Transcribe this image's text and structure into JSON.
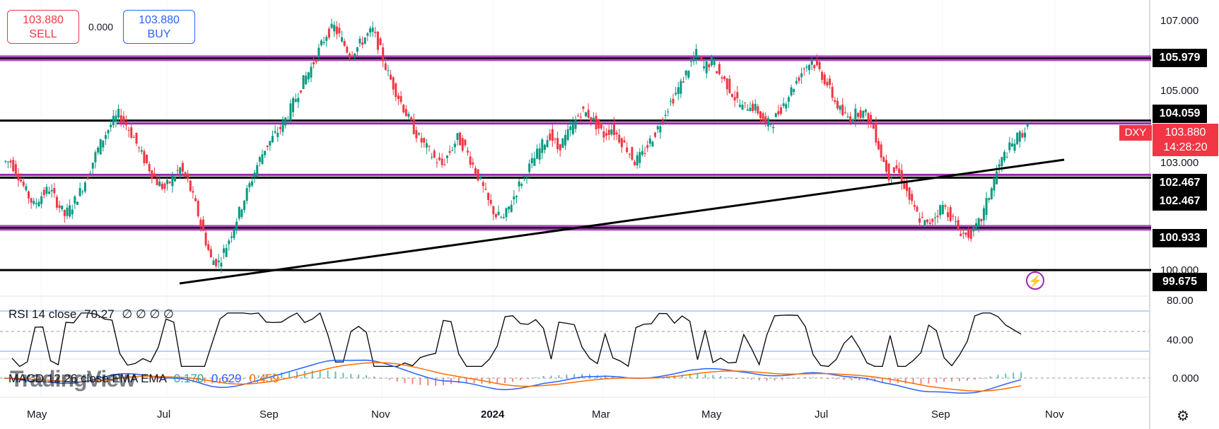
{
  "trade": {
    "sell_price": "103.880",
    "sell_label": "SELL",
    "buy_price": "103.880",
    "buy_label": "BUY",
    "spread": "0.000"
  },
  "price_axis": {
    "ticks": [
      "107.000",
      "105.000",
      "103.000",
      "100.000"
    ],
    "level_labels": [
      "105.979",
      "104.059",
      "102.467",
      "102.467",
      "100.933",
      "99.675"
    ]
  },
  "symbol": {
    "name": "DXY",
    "price": "103.880",
    "countdown": "14:28:20"
  },
  "rsi": {
    "label": "RSI 14 close",
    "value": "70.27",
    "extra": "∅ ∅ ∅ ∅",
    "ticks": [
      "80.00",
      "40.00"
    ]
  },
  "macd": {
    "label": "MACD 12 26 close EMA EMA",
    "hist": "0.170",
    "macd": "0.629",
    "signal": "0.459",
    "tick": "0.000"
  },
  "time_axis": [
    "May",
    "Jul",
    "Sep",
    "Nov",
    "2024",
    "Mar",
    "May",
    "Jul",
    "Sep",
    "Nov"
  ],
  "watermark": "TradingView",
  "colors": {
    "up": "#089981",
    "down": "#f23645",
    "purple": "#9c27b0",
    "line": "#000000",
    "macd_line": "#2962ff",
    "signal_line": "#ff6d00"
  },
  "chart_data": {
    "type": "candlestick",
    "ylim": [
      99.3,
      107.5
    ],
    "horizontal_levels": [
      105.979,
      104.059,
      102.467,
      100.933,
      99.675
    ],
    "closes": [
      102.9,
      102.5,
      102.0,
      101.6,
      101.9,
      102.1,
      101.7,
      101.3,
      101.6,
      102.0,
      102.5,
      103.1,
      103.6,
      104.0,
      104.3,
      104.0,
      103.6,
      103.1,
      102.7,
      102.3,
      102.1,
      102.4,
      102.7,
      102.3,
      101.6,
      100.8,
      100.0,
      99.9,
      100.4,
      101.0,
      101.6,
      102.2,
      102.8,
      103.3,
      103.6,
      103.9,
      104.3,
      104.8,
      105.3,
      105.7,
      106.2,
      106.7,
      106.9,
      106.5,
      106.1,
      106.3,
      106.6,
      106.8,
      106.2,
      105.5,
      105.0,
      104.5,
      104.0,
      103.6,
      103.3,
      103.0,
      102.8,
      103.2,
      103.6,
      103.3,
      102.8,
      102.3,
      101.7,
      101.3,
      101.2,
      101.7,
      102.2,
      102.6,
      103.0,
      103.4,
      103.7,
      103.3,
      103.6,
      104.0,
      104.4,
      104.3,
      104.0,
      103.7,
      103.9,
      103.6,
      103.3,
      102.9,
      103.1,
      103.5,
      103.9,
      104.4,
      104.8,
      105.2,
      105.7,
      106.1,
      105.7,
      105.9,
      105.5,
      105.2,
      104.8,
      104.5,
      104.6,
      104.4,
      104.0,
      104.1,
      104.5,
      104.9,
      105.3,
      105.7,
      105.9,
      105.6,
      105.2,
      104.7,
      104.3,
      104.2,
      104.4,
      104.3,
      103.9,
      103.1,
      102.5,
      102.7,
      102.2,
      101.6,
      101.2,
      101.0,
      101.3,
      101.6,
      101.3,
      100.9,
      100.7,
      100.8,
      101.2,
      101.9,
      102.6,
      103.1,
      103.4,
      103.7,
      103.9
    ]
  }
}
